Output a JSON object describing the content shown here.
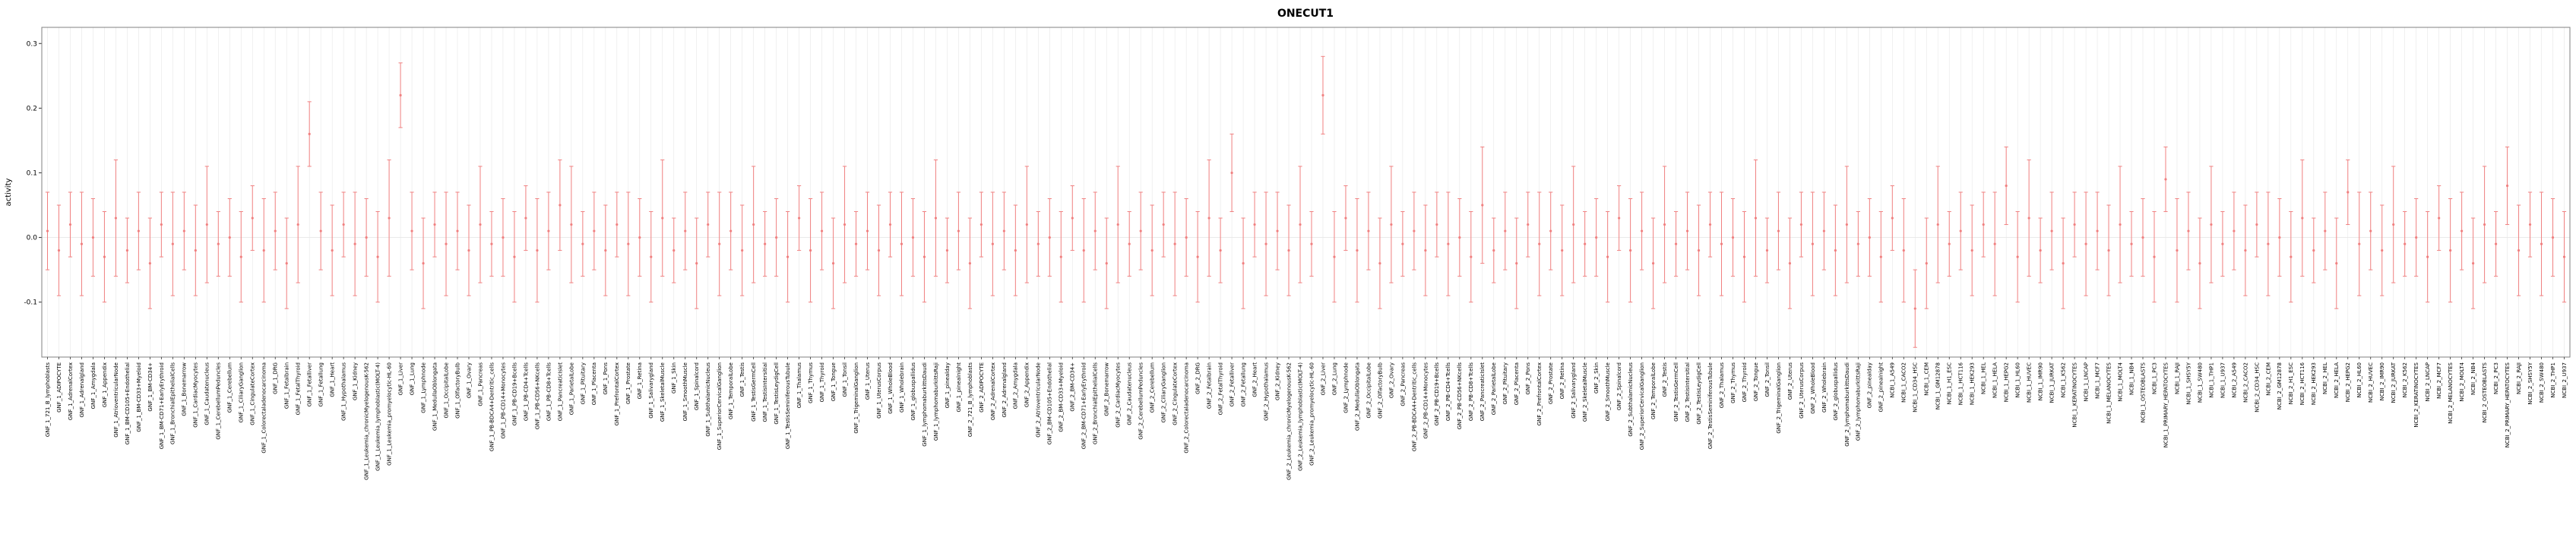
{
  "chart_data": {
    "type": "scatter",
    "error_bars": true,
    "title": "ONECUT1",
    "xlabel": "",
    "ylabel": "activity",
    "ylim": [
      -0.185,
      0.325
    ],
    "yticks": [
      -0.1,
      0,
      0.1,
      0.2,
      0.3
    ],
    "ytick_labels": [
      "-0.1",
      "0.0",
      "0.1",
      "0.2",
      "0.3"
    ],
    "legend": "none",
    "grid": "vertical-per-category",
    "grid_color": "#e7e7e7",
    "box_color": "#808080",
    "axis_color": "#333333",
    "point_color": "#f08080",
    "categories": [
      "GNF_1_721_B_lymphoblasts",
      "GNF_1_ADIPOCYTE",
      "GNF_1_AdrenalCortex",
      "GNF_1_Adrenalgland",
      "GNF_1_Amygdala",
      "GNF_1_Appendix",
      "GNF_1_AtrioventricularNode",
      "GNF_1_BM-CD105+Endothelial",
      "GNF_1_BM-CD33+Myeloid",
      "GNF_1_BM-CD34+",
      "GNF_1_BM-CD71+EarlyErythroid",
      "GNF_1_BronchialEpithelialCells",
      "GNF_1_Bonemarrow",
      "GNF_1_CardiacMyocytes",
      "GNF_1_Caudatenucleus",
      "GNF_1_CerebellumPeduncles",
      "GNF_1_Cerebellum",
      "GNF_1_CiliaryGanglion",
      "GNF_1_CingulateCortex",
      "GNF_1_Colorectaladenocarcinoma",
      "GNF_1_DRG",
      "GNF_1_Fetalbrain",
      "GNF_1_FetalThyroid",
      "GNF_1_Fetalliver",
      "GNF_1_Fetallung",
      "GNF_1_Heart",
      "GNF_1_Hypothalamus",
      "GNF_1_Kidney",
      "GNF_1_Leukemia_chronicMyelogenousK-562",
      "GNF_1_Leukemia_lymphoblastic(MOLT-4)",
      "GNF_1_Leukemia_promyelocytic-HL-60",
      "GNF_1_Liver",
      "GNF_1_Lung",
      "GNF_1_Lymphnode",
      "GNF_1_MedullaOblongata",
      "GNF_1_OccipitalLobe",
      "GNF_1_OlfactoryBulb",
      "GNF_1_Ovary",
      "GNF_1_Pancreas",
      "GNF_1_PB-BDCA4+Dentritic_cells",
      "GNF_1_PB-CD14+Monocytes",
      "GNF_1_PB-CD19+Bcells",
      "GNF_1_PB-CD4+Tcells",
      "GNF_1_PB-CD56+NKcells",
      "GNF_1_PB-CD8+Tcells",
      "GNF_1_PancreaticIslet",
      "GNF_1_ParietalLobe",
      "GNF_1_Pituitary",
      "GNF_1_Placenta",
      "GNF_1_Pons",
      "GNF_1_PrefrontalCortex",
      "GNF_1_Prostate",
      "GNF_1_Retina",
      "GNF_1_Salivarygland",
      "GNF_1_SkeletalMuscle",
      "GNF_1_Skin",
      "GNF_1_SmoothMuscle",
      "GNF_1_Spinalcord",
      "GNF_1_SubthalamicNucleus",
      "GNF_1_SuperiorCervicalGanglion",
      "GNF_1_TemporalLobe",
      "GNF_1_Testis",
      "GNF_1_TestisGermCell",
      "GNF_1_TestisIntersitial",
      "GNF_1_TestisLeydigCell",
      "GNF_1_TestisSeminiferousTubule",
      "GNF_1_Thalamus",
      "GNF_1_Thymus",
      "GNF_1_Thyroid",
      "GNF_1_Tongue",
      "GNF_1_Tonsil",
      "GNF_1_TrigeminalGanglion",
      "GNF_1_Uterus",
      "GNF_1_UterusCorpus",
      "GNF_1_WholeBlood",
      "GNF_1_Wholebrain",
      "GNF_1_globuspallidus",
      "GNF_1_lymphomaburkittsDaudi",
      "GNF_1_lymphomaburkittsRaji",
      "GNF_1_pinealday",
      "GNF_1_pinealnight",
      "GNF_2_721_B_lymphoblasts",
      "GNF_2_ADIPOCYTE",
      "GNF_2_AdrenalCortex",
      "GNF_2_Adrenalgland",
      "GNF_2_Amygdala",
      "GNF_2_Appendix",
      "GNF_2_AtrioventricularNode",
      "GNF_2_BM-CD105+Endothelial",
      "GNF_2_BM-CD33+Myeloid",
      "GNF_2_BM-CD34+",
      "GNF_2_BM-CD71+EarlyErythroid",
      "GNF_2_BronchialEpithelialCells",
      "GNF_2_Bonemarrow",
      "GNF_2_CardiacMyocytes",
      "GNF_2_Caudatenucleus",
      "GNF_2_CerebellumPeduncles",
      "GNF_2_Cerebellum",
      "GNF_2_CiliaryGanglion",
      "GNF_2_CingulateCortex",
      "GNF_2_Colorectaladenocarcinoma",
      "GNF_2_DRG",
      "GNF_2_Fetalbrain",
      "GNF_2_FetalThyroid",
      "GNF_2_Fetalliver",
      "GNF_2_Fetallung",
      "GNF_2_Heart",
      "GNF_2_Hypothalamus",
      "GNF_2_Kidney",
      "GNF_2_Leukemia_chronicMyelogenousK-562",
      "GNF_2_Leukemia_lymphoblastic(MOLT-4)",
      "GNF_2_Leukemia_promyelocytic-HL-60",
      "GNF_2_Liver",
      "GNF_2_Lung",
      "GNF_2_Lymphnode",
      "GNF_2_MedullaOblongata",
      "GNF_2_OccipitalLobe",
      "GNF_2_OlfactoryBulb",
      "GNF_2_Ovary",
      "GNF_2_Pancreas",
      "GNF_2_PB-BDCA4+Dentritic_cells",
      "GNF_2_PB-CD14+Monocytes",
      "GNF_2_PB-CD19+Bcells",
      "GNF_2_PB-CD4+Tcells",
      "GNF_2_PB-CD56+NKcells",
      "GNF_2_PB-CD8+Tcells",
      "GNF_2_PancreaticIslet",
      "GNF_2_ParietalLobe",
      "GNF_2_Pituitary",
      "GNF_2_Placenta",
      "GNF_2_Pons",
      "GNF_2_PrefrontalCortex",
      "GNF_2_Prostate",
      "GNF_2_Retina",
      "GNF_2_Salivarygland",
      "GNF_2_SkeletalMuscle",
      "GNF_2_Skin",
      "GNF_2_SmoothMuscle",
      "GNF_2_Spinalcord",
      "GNF_2_SubthalamicNucleus",
      "GNF_2_SuperiorCervicalGanglion",
      "GNF_2_TemporalLobe",
      "GNF_2_Testis",
      "GNF_2_TestisGermCell",
      "GNF_2_TestisIntersitial",
      "GNF_2_TestisLeydigCell",
      "GNF_2_TestisSeminiferousTubule",
      "GNF_2_Thalamus",
      "GNF_2_Thymus",
      "GNF_2_Thyroid",
      "GNF_2_Tongue",
      "GNF_2_Tonsil",
      "GNF_2_TrigeminalGanglion",
      "GNF_2_Uterus",
      "GNF_2_UterusCorpus",
      "GNF_2_WholeBlood",
      "GNF_2_Wholebrain",
      "GNF_2_globuspallidus",
      "GNF_2_lymphomaburkittsDaudi",
      "GNF_2_lymphomaburkittsRaji",
      "GNF_2_pinealday",
      "GNF_2_pinealnight",
      "NCBI_1_A549",
      "NCBI_1_CACO2",
      "NCBI_1_CD34_HSC",
      "NCBI_1_CEM",
      "NCBI_1_GM12878",
      "NCBI_1_H1_ESC",
      "NCBI_1_HCT116",
      "NCBI_1_HEK293",
      "NCBI_1_HEL",
      "NCBI_1_HELA",
      "NCBI_1_HEPG2",
      "NCBI_1_HL60",
      "NCBI_1_HUVEC",
      "NCBI_1_IMR90",
      "NCBI_1_JURKAT",
      "NCBI_1_K562",
      "NCBI_1_KERATINOCYTES",
      "NCBI_1_LNCAP",
      "NCBI_1_MCF7",
      "NCBI_1_MELANOCYTES",
      "NCBI_1_MOLT4",
      "NCBI_1_NB4",
      "NCBI_1_OSTEOBLASTS",
      "NCBI_1_PC3",
      "NCBI_1_PRIMARY_HEPATOCYTES",
      "NCBI_1_RAJI",
      "NCBI_1_SHSY5Y",
      "NCBI_1_SW480",
      "NCBI_1_THP1",
      "NCBI_1_U937",
      "NCBI_2_A549",
      "NCBI_2_CACO2",
      "NCBI_2_CD34_HSC",
      "NCBI_2_CEM",
      "NCBI_2_GM12878",
      "NCBI_2_H1_ESC",
      "NCBI_2_HCT116",
      "NCBI_2_HEK293",
      "NCBI_2_HEL",
      "NCBI_2_HELA",
      "NCBI_2_HEPG2",
      "NCBI_2_HL60",
      "NCBI_2_HUVEC",
      "NCBI_2_IMR90",
      "NCBI_2_JURKAT",
      "NCBI_2_K562",
      "NCBI_2_KERATINOCYTES",
      "NCBI_2_LNCAP",
      "NCBI_2_MCF7",
      "NCBI_2_MELANOCYTES",
      "NCBI_2_MOLT4",
      "NCBI_2_NB4",
      "NCBI_2_OSTEOBLASTS",
      "NCBI_2_PC3",
      "NCBI_2_PRIMARY_HEPATOCYTES",
      "NCBI_2_RAJI",
      "NCBI_2_SHSY5Y",
      "NCBI_2_SW480",
      "NCBI_2_THP1",
      "NCBI_2_U937"
    ],
    "means": [
      0.01,
      -0.02,
      0.02,
      -0.01,
      0,
      -0.03,
      0.03,
      -0.02,
      0.01,
      -0.04,
      0.02,
      -0.01,
      0.01,
      -0.02,
      0.02,
      -0.01,
      0,
      -0.03,
      0.03,
      -0.02,
      0.01,
      -0.04,
      0.02,
      0.16,
      0.01,
      -0.02,
      0.02,
      -0.01,
      0,
      -0.03,
      0.03,
      0.22,
      0.01,
      -0.04,
      0.02,
      -0.01,
      0.01,
      -0.02,
      0.02,
      -0.01,
      0,
      -0.03,
      0.03,
      -0.02,
      0.01,
      0.05,
      0.02,
      -0.01,
      0.01,
      -0.02,
      0.02,
      -0.01,
      0,
      -0.03,
      0.03,
      -0.02,
      0.01,
      -0.04,
      0.02,
      -0.01,
      0.01,
      -0.02,
      0.02,
      -0.01,
      0,
      -0.03,
      0.03,
      -0.02,
      0.01,
      -0.04,
      0.02,
      -0.01,
      0.01,
      -0.02,
      0.02,
      -0.01,
      0,
      -0.03,
      0.03,
      -0.02,
      0.01,
      -0.04,
      0.02,
      -0.01,
      0.01,
      -0.02,
      0.02,
      -0.01,
      0,
      -0.03,
      0.03,
      -0.02,
      0.01,
      -0.04,
      0.02,
      -0.01,
      0.01,
      -0.02,
      0.02,
      -0.01,
      0,
      -0.03,
      0.03,
      -0.02,
      0.1,
      -0.04,
      0.02,
      -0.01,
      0.01,
      -0.02,
      0.02,
      -0.01,
      0.22,
      -0.03,
      0.03,
      -0.02,
      0.01,
      -0.04,
      0.02,
      -0.01,
      0.01,
      -0.02,
      0.02,
      -0.01,
      0,
      -0.03,
      0.05,
      -0.02,
      0.01,
      -0.04,
      0.02,
      -0.01,
      0.01,
      -0.02,
      0.02,
      -0.01,
      0,
      -0.03,
      0.03,
      -0.02,
      0.01,
      -0.04,
      0.02,
      -0.01,
      0.01,
      -0.02,
      0.02,
      -0.01,
      0,
      -0.03,
      0.03,
      -0.02,
      0.01,
      -0.04,
      0.02,
      -0.01,
      0.01,
      -0.02,
      0.02,
      -0.01,
      0,
      -0.03,
      0.03,
      -0.02,
      -0.11,
      -0.04,
      0.02,
      -0.01,
      0.01,
      -0.02,
      0.02,
      -0.01,
      0.08,
      -0.03,
      0.03,
      -0.02,
      0.01,
      -0.04,
      0.02,
      -0.01,
      0.01,
      -0.02,
      0.02,
      -0.01,
      0,
      -0.03,
      0.09,
      -0.02,
      0.01,
      -0.04,
      0.02,
      -0.01,
      0.01,
      -0.02,
      0.02,
      -0.01,
      0,
      -0.03,
      0.03,
      -0.02,
      0.01,
      -0.04,
      0.07,
      -0.01,
      0.01,
      -0.02,
      0.02,
      -0.01,
      0,
      -0.03,
      0.03,
      -0.02,
      0.01,
      -0.04,
      0.02,
      -0.01,
      0.08,
      -0.02,
      0.02,
      -0.01,
      0,
      -0.03
    ],
    "errors": [
      0.06,
      0.07,
      0.05,
      0.08,
      0.06,
      0.07,
      0.09,
      0.05,
      0.06,
      0.07,
      0.05,
      0.08,
      0.06,
      0.07,
      0.09,
      0.05,
      0.06,
      0.07,
      0.05,
      0.08,
      0.06,
      0.07,
      0.09,
      0.05,
      0.06,
      0.07,
      0.05,
      0.08,
      0.06,
      0.07,
      0.09,
      0.05,
      0.06,
      0.07,
      0.05,
      0.08,
      0.06,
      0.07,
      0.09,
      0.05,
      0.06,
      0.07,
      0.05,
      0.08,
      0.06,
      0.07,
      0.09,
      0.05,
      0.06,
      0.07,
      0.05,
      0.08,
      0.06,
      0.07,
      0.09,
      0.05,
      0.06,
      0.07,
      0.05,
      0.08,
      0.06,
      0.07,
      0.09,
      0.05,
      0.06,
      0.07,
      0.05,
      0.08,
      0.06,
      0.07,
      0.09,
      0.05,
      0.06,
      0.07,
      0.05,
      0.08,
      0.06,
      0.07,
      0.09,
      0.05,
      0.06,
      0.07,
      0.05,
      0.08,
      0.06,
      0.07,
      0.09,
      0.05,
      0.06,
      0.07,
      0.05,
      0.08,
      0.06,
      0.07,
      0.09,
      0.05,
      0.06,
      0.07,
      0.05,
      0.08,
      0.06,
      0.07,
      0.09,
      0.05,
      0.06,
      0.07,
      0.05,
      0.08,
      0.06,
      0.07,
      0.09,
      0.05,
      0.06,
      0.07,
      0.05,
      0.08,
      0.06,
      0.07,
      0.09,
      0.05,
      0.06,
      0.07,
      0.05,
      0.08,
      0.06,
      0.07,
      0.09,
      0.05,
      0.06,
      0.07,
      0.05,
      0.08,
      0.06,
      0.07,
      0.09,
      0.05,
      0.06,
      0.07,
      0.05,
      0.08,
      0.06,
      0.07,
      0.09,
      0.05,
      0.06,
      0.07,
      0.05,
      0.08,
      0.06,
      0.07,
      0.09,
      0.05,
      0.06,
      0.07,
      0.05,
      0.08,
      0.06,
      0.07,
      0.09,
      0.05,
      0.06,
      0.07,
      0.05,
      0.08,
      0.06,
      0.07,
      0.09,
      0.05,
      0.06,
      0.07,
      0.05,
      0.08,
      0.06,
      0.07,
      0.09,
      0.05,
      0.06,
      0.07,
      0.05,
      0.08,
      0.06,
      0.07,
      0.09,
      0.05,
      0.06,
      0.07,
      0.05,
      0.08,
      0.06,
      0.07,
      0.09,
      0.05,
      0.06,
      0.07,
      0.05,
      0.08,
      0.06,
      0.07,
      0.09,
      0.05,
      0.06,
      0.07,
      0.05,
      0.08,
      0.06,
      0.07,
      0.09,
      0.05,
      0.06,
      0.07,
      0.05,
      0.08,
      0.06,
      0.07,
      0.09,
      0.05,
      0.06,
      0.07,
      0.05,
      0.08,
      0.06,
      0.07
    ]
  }
}
